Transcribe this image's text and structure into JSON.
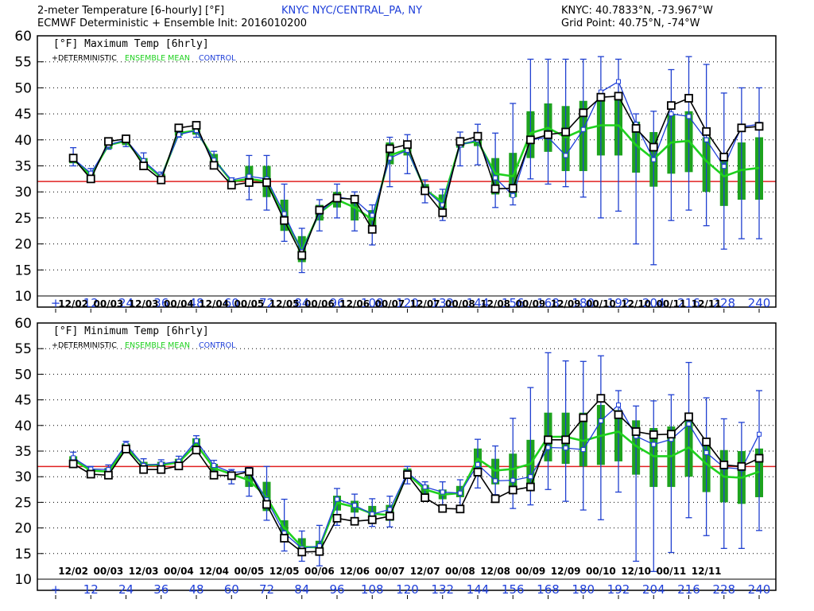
{
  "header": {
    "title": "2-meter Temperature [6-hourly] [°F]",
    "station": "KNYC NYC/CENTRAL_PA, NY",
    "subtitle": "ECMWF Deterministic + Ensemble Init: 2016010200",
    "station_coords": "KNYC: 40.7833°N, -73.967°W",
    "grid_point": "Grid Point: 40.75°N, -74°W"
  },
  "colors": {
    "deterministic": "#000000",
    "ensemble_mean": "#1fd11f",
    "control": "#1f3fd9",
    "spread_box": "#1ea31e",
    "whisker": "#2040d0",
    "threshold": "#e02020",
    "axis_text": "#1f3fd9"
  },
  "chart_data": [
    {
      "type": "line",
      "title": "[°F] Maximum Temp [6hrly]",
      "legend": [
        "+DETERMINISTIC",
        "ENSEMBLE MEAN",
        "CONTROL"
      ],
      "legend_placement": "top-left",
      "ylim": [
        10,
        60
      ],
      "yticks": [
        10,
        15,
        20,
        25,
        30,
        35,
        40,
        45,
        50,
        55,
        60
      ],
      "xlim": [
        0,
        240
      ],
      "xticks": [
        "+",
        "12",
        "24",
        "36",
        "48",
        "60",
        "72",
        "84",
        "96",
        "108",
        "120",
        "132",
        "144",
        "156",
        "168",
        "180",
        "192",
        "204",
        "216",
        "228",
        "240"
      ],
      "date_labels": [
        "12/02",
        "00/03",
        "12/03",
        "00/04",
        "12/04",
        "00/05",
        "12/05",
        "00/06",
        "12/06",
        "00/07",
        "12/07",
        "00/08",
        "12/08",
        "00/09",
        "12/09",
        "00/10",
        "12/10",
        "00/11",
        "12/11"
      ],
      "threshold": 32,
      "grid": true,
      "x": [
        6,
        12,
        18,
        24,
        30,
        36,
        42,
        48,
        54,
        60,
        66,
        72,
        78,
        84,
        90,
        96,
        102,
        108,
        114,
        120,
        126,
        132,
        138,
        144,
        150,
        156,
        162,
        168,
        174,
        180,
        186,
        192,
        198,
        204,
        210,
        216,
        222,
        228,
        234,
        240
      ],
      "series": [
        {
          "name": "DETERMINISTIC",
          "values": [
            36.5,
            32.5,
            39.7,
            40.2,
            35,
            32.3,
            42.3,
            42.8,
            35.1,
            31.3,
            31.8,
            31.8,
            24.5,
            17.8,
            26.5,
            28.8,
            28.6,
            22.8,
            38.3,
            39.1,
            30.2,
            26,
            39.7,
            40.7,
            30.6,
            30.7,
            40,
            41,
            41.5,
            45.2,
            48.2,
            48.4,
            42.2,
            38.6,
            46.6,
            48,
            41.6,
            36.7,
            42.3,
            42.6
          ]
        },
        {
          "name": "ENSEMBLE MEAN",
          "values": [
            36.3,
            33.2,
            39,
            39.8,
            35.7,
            32.8,
            41.3,
            41.8,
            36.3,
            32,
            32.5,
            32,
            25,
            18.8,
            26,
            28.5,
            27,
            24.7,
            37,
            38.2,
            30.5,
            28,
            39.2,
            39.7,
            33.5,
            33,
            41.3,
            42.3,
            40.5,
            42,
            42.8,
            42.8,
            39,
            36.3,
            39.5,
            39.8,
            35.9,
            33,
            34.2,
            34.6
          ]
        },
        {
          "name": "CONTROL",
          "values": [
            36.4,
            33.6,
            39,
            40,
            36,
            33,
            41,
            41.8,
            36.1,
            32.3,
            33,
            32.5,
            25.8,
            18.5,
            26,
            29,
            28.5,
            25.5,
            36.5,
            38,
            30.5,
            27.5,
            39,
            40,
            32.7,
            29.3,
            40,
            40.5,
            37,
            42,
            49.2,
            51.2,
            43,
            36.2,
            45,
            44.5,
            40,
            34.9,
            42.5,
            43
          ]
        }
      ],
      "boxes": [
        [
          35.5,
          37.2
        ],
        [
          32.8,
          34
        ],
        [
          38.3,
          40
        ],
        [
          39,
          40.5
        ],
        [
          35,
          36.5
        ],
        [
          32.2,
          33.5
        ],
        [
          40.8,
          42
        ],
        [
          41,
          42.7
        ],
        [
          35.5,
          37.3
        ],
        [
          31.5,
          32.5
        ],
        [
          31,
          35
        ],
        [
          29,
          35
        ],
        [
          22.5,
          28.5
        ],
        [
          16.5,
          21.5
        ],
        [
          24.5,
          27.5
        ],
        [
          27,
          30
        ],
        [
          24.5,
          29
        ],
        [
          22.5,
          26.5
        ],
        [
          35.3,
          39.5
        ],
        [
          37,
          39.8
        ],
        [
          29.5,
          31.5
        ],
        [
          26.5,
          29.5
        ],
        [
          38.5,
          40.5
        ],
        [
          38.8,
          41
        ],
        [
          29.5,
          36.5
        ],
        [
          29,
          37.5
        ],
        [
          36.5,
          45.5
        ],
        [
          37.7,
          47
        ],
        [
          34,
          46.5
        ],
        [
          34,
          47.5
        ],
        [
          37,
          48.5
        ],
        [
          37,
          48.5
        ],
        [
          33.7,
          43.5
        ],
        [
          31,
          41.5
        ],
        [
          33.5,
          45
        ],
        [
          33.8,
          45.5
        ],
        [
          30,
          40.5
        ],
        [
          27.3,
          36.5
        ],
        [
          28.5,
          39.5
        ],
        [
          28.5,
          40.5
        ]
      ],
      "whiskers": [
        [
          35,
          38.5
        ],
        [
          32.4,
          34.5
        ],
        [
          38.2,
          40.4
        ],
        [
          38.7,
          40.8
        ],
        [
          34.8,
          37.5
        ],
        [
          32.1,
          33.8
        ],
        [
          40.5,
          42.5
        ],
        [
          40.5,
          43
        ],
        [
          34.5,
          37.8
        ],
        [
          30.8,
          32.7
        ],
        [
          28.5,
          37
        ],
        [
          26.5,
          37
        ],
        [
          20.5,
          31.5
        ],
        [
          14.5,
          23
        ],
        [
          22.5,
          28.5
        ],
        [
          25,
          31.5
        ],
        [
          22.5,
          30
        ],
        [
          19.8,
          27.5
        ],
        [
          31,
          40.5
        ],
        [
          33.5,
          41
        ],
        [
          27.9,
          32.3
        ],
        [
          24.5,
          30.5
        ],
        [
          35,
          41.5
        ],
        [
          35.2,
          43
        ],
        [
          27,
          41.3
        ],
        [
          27.5,
          47
        ],
        [
          32.5,
          55.5
        ],
        [
          31.5,
          55.5
        ],
        [
          31,
          55.5
        ],
        [
          29,
          55.5
        ],
        [
          25,
          56
        ],
        [
          26.3,
          55.5
        ],
        [
          20,
          45
        ],
        [
          16,
          45.5
        ],
        [
          24.5,
          53.5
        ],
        [
          26.5,
          56
        ],
        [
          23.5,
          54.5
        ],
        [
          19,
          49
        ],
        [
          21,
          50
        ],
        [
          21,
          50
        ]
      ]
    },
    {
      "type": "line",
      "title": "[°F] Minimum Temp [6hrly]",
      "legend": [
        "+DETERMINISTIC",
        "ENSEMBLE MEAN",
        "CONTROL"
      ],
      "legend_placement": "top-left",
      "ylim": [
        10,
        60
      ],
      "yticks": [
        10,
        15,
        20,
        25,
        30,
        35,
        40,
        45,
        50,
        55,
        60
      ],
      "xlim": [
        0,
        240
      ],
      "xticks": [
        "+",
        "12",
        "24",
        "36",
        "48",
        "60",
        "72",
        "84",
        "96",
        "108",
        "120",
        "132",
        "144",
        "156",
        "168",
        "180",
        "192",
        "204",
        "216",
        "228",
        "240"
      ],
      "date_labels": [
        "12/02",
        "00/03",
        "12/03",
        "00/04",
        "12/04",
        "00/05",
        "12/05",
        "00/06",
        "12/06",
        "00/07",
        "12/07",
        "00/08",
        "12/08",
        "00/09",
        "12/09",
        "00/10",
        "12/10",
        "00/11",
        "12/11"
      ],
      "threshold": 32,
      "grid": true,
      "x": [
        6,
        12,
        18,
        24,
        30,
        36,
        42,
        48,
        54,
        60,
        66,
        72,
        78,
        84,
        90,
        96,
        102,
        108,
        114,
        120,
        126,
        132,
        138,
        144,
        150,
        156,
        162,
        168,
        174,
        180,
        186,
        192,
        198,
        204,
        210,
        216,
        222,
        228,
        234,
        240
      ],
      "series": [
        {
          "name": "DETERMINISTIC",
          "values": [
            32.5,
            30.5,
            30.3,
            35.4,
            31.4,
            31.4,
            32.1,
            35.2,
            30.3,
            30.2,
            31,
            24.6,
            18,
            15.3,
            15.4,
            21.9,
            21.3,
            21.6,
            22.3,
            30.4,
            25.9,
            23.8,
            23.7,
            30.9,
            25.7,
            27.4,
            28,
            37.2,
            37.2,
            41.5,
            45.3,
            42.1,
            38.8,
            38.2,
            38.3,
            41.7,
            36.8,
            32.3,
            32,
            33.6
          ]
        },
        {
          "name": "ENSEMBLE MEAN",
          "values": [
            33.3,
            31.2,
            31,
            35.7,
            32.3,
            32.3,
            32.8,
            36.3,
            31.7,
            30.5,
            29.3,
            26,
            20,
            16.3,
            16.2,
            24.9,
            24.1,
            22.8,
            22.5,
            30.6,
            27.5,
            26.5,
            26.8,
            33.5,
            31.2,
            31.5,
            32.5,
            37.8,
            37.8,
            37,
            38,
            38.8,
            36,
            34,
            34,
            35.7,
            32.5,
            30,
            29.8,
            31
          ]
        },
        {
          "name": "CONTROL",
          "values": [
            33.7,
            31.5,
            31.4,
            36.3,
            32.2,
            32.5,
            33,
            37,
            32.2,
            30.8,
            31.1,
            25.5,
            19,
            16,
            16.5,
            25.6,
            24.4,
            22.7,
            23.6,
            30.8,
            28,
            27,
            26.8,
            32.4,
            29.2,
            29.3,
            30,
            35.7,
            35.6,
            35.3,
            40.9,
            44,
            37.9,
            36.3,
            37.3,
            40.3,
            34.7,
            31.8,
            31.5,
            38.3
          ]
        }
      ],
      "boxes": [
        [
          33,
          34
        ],
        [
          30.8,
          31.5
        ],
        [
          30.7,
          31.7
        ],
        [
          35.2,
          36.5
        ],
        [
          31.9,
          32.9
        ],
        [
          31.7,
          32.9
        ],
        [
          32.3,
          33.5
        ],
        [
          35.5,
          37.5
        ],
        [
          31,
          32.5
        ],
        [
          29.8,
          31
        ],
        [
          28,
          31
        ],
        [
          23.3,
          29
        ],
        [
          17.5,
          21.5
        ],
        [
          14.6,
          18
        ],
        [
          14.8,
          17.5
        ],
        [
          23.4,
          26.3
        ],
        [
          23,
          25.3
        ],
        [
          21.5,
          24.3
        ],
        [
          21.4,
          24.5
        ],
        [
          29.7,
          31.6
        ],
        [
          26.7,
          28.4
        ],
        [
          25.6,
          27.5
        ],
        [
          26,
          28.2
        ],
        [
          30.6,
          35.5
        ],
        [
          28.5,
          33.5
        ],
        [
          28,
          34.5
        ],
        [
          28.5,
          37.2
        ],
        [
          33,
          42.5
        ],
        [
          32.5,
          42.5
        ],
        [
          32,
          42.5
        ],
        [
          32.3,
          44
        ],
        [
          33,
          43
        ],
        [
          30.4,
          41
        ],
        [
          28,
          39.5
        ],
        [
          28,
          39.8
        ],
        [
          30,
          41.5
        ],
        [
          27,
          37
        ],
        [
          25,
          35.2
        ],
        [
          24.7,
          35
        ],
        [
          26,
          35.5
        ]
      ],
      "whiskers": [
        [
          32.5,
          34.8
        ],
        [
          30.3,
          32
        ],
        [
          30.1,
          32.3
        ],
        [
          34.9,
          36.9
        ],
        [
          31.5,
          33.5
        ],
        [
          31.3,
          33.3
        ],
        [
          32,
          34
        ],
        [
          35,
          38
        ],
        [
          30.3,
          33.2
        ],
        [
          28.6,
          31.4
        ],
        [
          26.2,
          31.8
        ],
        [
          21.5,
          32
        ],
        [
          15.5,
          25.6
        ],
        [
          13.5,
          19.4
        ],
        [
          12.6,
          20.5
        ],
        [
          20.5,
          27.7
        ],
        [
          20.7,
          26.6
        ],
        [
          20.3,
          25.7
        ],
        [
          20.2,
          26.2
        ],
        [
          28.6,
          32
        ],
        [
          25.4,
          29
        ],
        [
          23.8,
          29
        ],
        [
          23.5,
          29.4
        ],
        [
          27.8,
          37.3
        ],
        [
          26.5,
          36
        ],
        [
          23.8,
          41.4
        ],
        [
          24.5,
          47.4
        ],
        [
          27.5,
          54.2
        ],
        [
          25.2,
          52.6
        ],
        [
          23.5,
          52.5
        ],
        [
          21.6,
          53.6
        ],
        [
          27,
          46.8
        ],
        [
          13.5,
          43.8
        ],
        [
          11.5,
          44.8
        ],
        [
          15.2,
          46
        ],
        [
          22,
          52.3
        ],
        [
          18.5,
          45.4
        ],
        [
          16,
          41.3
        ],
        [
          16,
          40.6
        ],
        [
          19.5,
          46.8
        ]
      ]
    }
  ]
}
